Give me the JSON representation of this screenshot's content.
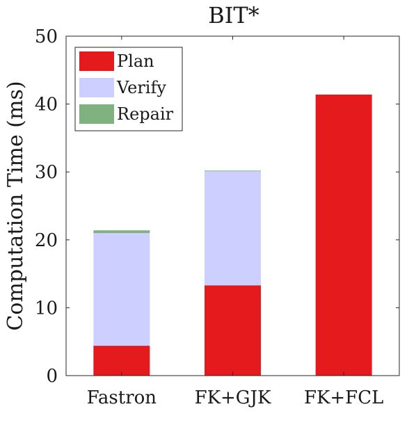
{
  "chart_data": {
    "type": "bar",
    "stacked": true,
    "title": "BIT*",
    "xlabel": "",
    "ylabel": "Computation Time (ms)",
    "categories": [
      "Fastron",
      "FK+GJK",
      "FK+FCL"
    ],
    "series": [
      {
        "name": "Plan",
        "color": "#e41a1c",
        "values": [
          4.4,
          13.3,
          41.4
        ]
      },
      {
        "name": "Verify",
        "color": "#cccfff",
        "values": [
          16.6,
          16.8,
          0
        ]
      },
      {
        "name": "Repair",
        "color": "#7fb27f",
        "values": [
          0.4,
          0.1,
          0
        ]
      }
    ],
    "ylim": [
      0,
      50
    ],
    "yticks": [
      0,
      10,
      20,
      30,
      40,
      50
    ],
    "grid": false,
    "legend_position": "top-left"
  }
}
